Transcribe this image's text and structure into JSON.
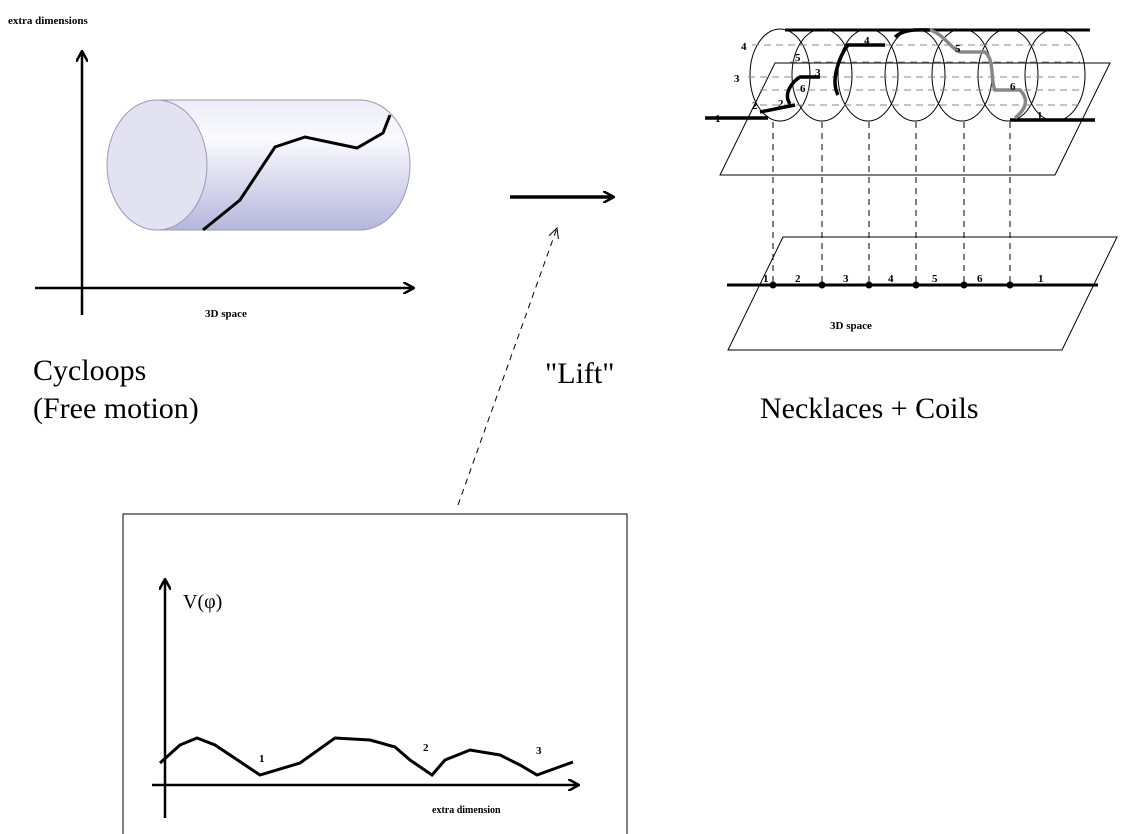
{
  "left_panel": {
    "y_axis_label": "extra dimensions",
    "x_axis_label": "3D space",
    "caption_lines": [
      "Cycloops",
      "(Free motion)"
    ]
  },
  "lift_label": "\"Lift\"",
  "right_panel": {
    "cylinder_labels": [
      "4",
      "3",
      "5",
      "6",
      "3",
      "2",
      "2",
      "1",
      "4",
      "5",
      "6",
      "1"
    ],
    "line_labels": [
      "1",
      "2",
      "3",
      "4",
      "5",
      "6",
      "1"
    ],
    "plane_label": "3D space",
    "caption": "Necklaces + Coils"
  },
  "potential_panel": {
    "y_axis_label": "V(φ)",
    "minima_labels": [
      "1",
      "2",
      "3"
    ],
    "x_axis_label": "extra dimension"
  }
}
